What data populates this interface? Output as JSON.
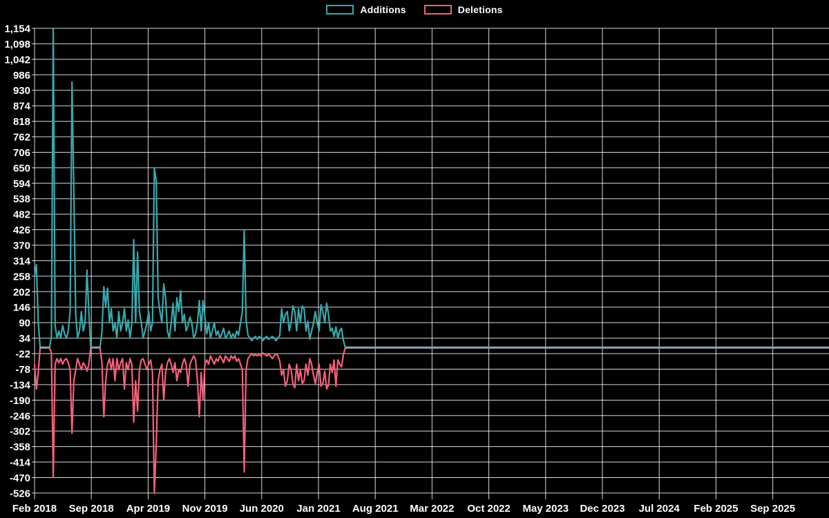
{
  "legend": {
    "items": [
      {
        "label": "Additions",
        "color": "#38a9ad"
      },
      {
        "label": "Deletions",
        "color": "#f5617b"
      }
    ]
  },
  "chart_data": {
    "type": "line",
    "title": "",
    "xlabel": "",
    "ylabel": "",
    "background_color": "#000000",
    "grid": true,
    "grid_color": "#ffffff",
    "legend_position": "top-center",
    "x_interval": "weekly",
    "x_start_label": "Feb 2018",
    "x_tick_labels": [
      "Feb 2018",
      "Sep 2018",
      "Apr 2019",
      "Nov 2019",
      "Jun 2020",
      "Jan 2021",
      "Aug 2021",
      "Mar 2022",
      "Oct 2022",
      "May 2023",
      "Dec 2023",
      "Jul 2024",
      "Feb 2025",
      "Sep 2025"
    ],
    "x_tick_interval_months": 7,
    "y_tick_labels": [
      "1,154",
      "1,098",
      "1,042",
      "986",
      "930",
      "874",
      "818",
      "762",
      "706",
      "650",
      "594",
      "538",
      "482",
      "426",
      "370",
      "314",
      "258",
      "202",
      "146",
      "90",
      "34",
      "-22",
      "-78",
      "-134",
      "-190",
      "-246",
      "-302",
      "-358",
      "-414",
      "-470",
      "-526"
    ],
    "y_tick_values": [
      1154,
      1098,
      1042,
      986,
      930,
      874,
      818,
      762,
      706,
      650,
      594,
      538,
      482,
      426,
      370,
      314,
      258,
      202,
      146,
      90,
      34,
      -22,
      -78,
      -134,
      -190,
      -246,
      -302,
      -358,
      -414,
      -470,
      -526
    ],
    "ylim": [
      -526,
      1154
    ],
    "zero_tail": {
      "enabled": true,
      "color": "#86abb4",
      "note": "after the last data point (~Apr 2021) both series stay at 0 to the right edge"
    },
    "series": [
      {
        "name": "Additions",
        "color": "#38a9ad",
        "values": [
          260,
          300,
          90,
          0,
          0,
          0,
          0,
          0,
          0,
          40,
          1154,
          80,
          34,
          60,
          34,
          80,
          50,
          34,
          60,
          130,
          960,
          560,
          120,
          34,
          60,
          130,
          60,
          90,
          280,
          130,
          0,
          0,
          0,
          0,
          0,
          0,
          60,
          220,
          150,
          215,
          90,
          140,
          60,
          90,
          34,
          130,
          60,
          90,
          140,
          60,
          100,
          34,
          90,
          390,
          90,
          345,
          130,
          90,
          34,
          60,
          90,
          130,
          60,
          90,
          650,
          600,
          180,
          130,
          90,
          230,
          180,
          60,
          34,
          90,
          160,
          60,
          180,
          130,
          205,
          90,
          120,
          60,
          80,
          110,
          90,
          34,
          50,
          90,
          170,
          60,
          170,
          110,
          50,
          90,
          34,
          60,
          90,
          45,
          60,
          34,
          50,
          70,
          34,
          45,
          60,
          34,
          50,
          34,
          60,
          45,
          90,
          130,
          425,
          100,
          45,
          34,
          25,
          34,
          40,
          30,
          40,
          34,
          25,
          34,
          40,
          30,
          34,
          40,
          34,
          25,
          34,
          45,
          140,
          90,
          120,
          130,
          60,
          90,
          150,
          130,
          60,
          140,
          90,
          150,
          140,
          60,
          95,
          30,
          60,
          90,
          130,
          90,
          60,
          155,
          130,
          90,
          160,
          120,
          60,
          70,
          40,
          75,
          34,
          60,
          70,
          25,
          0
        ]
      },
      {
        "name": "Deletions",
        "color": "#f5617b",
        "values": [
          -60,
          -150,
          -90,
          0,
          0,
          0,
          0,
          0,
          0,
          -20,
          -470,
          -60,
          -40,
          -55,
          -40,
          -60,
          -45,
          -40,
          -55,
          -80,
          -310,
          -120,
          -80,
          -40,
          -60,
          -80,
          -55,
          -65,
          -85,
          -60,
          0,
          0,
          0,
          0,
          0,
          0,
          -55,
          -250,
          -120,
          -60,
          -40,
          -80,
          -40,
          -120,
          -40,
          -80,
          -55,
          -40,
          -150,
          -55,
          -80,
          -40,
          -60,
          -270,
          -120,
          -230,
          -80,
          -45,
          -40,
          -60,
          -80,
          -60,
          -45,
          -90,
          -526,
          -350,
          -120,
          -80,
          -60,
          -190,
          -90,
          -55,
          -40,
          -60,
          -90,
          -55,
          -120,
          -80,
          -90,
          -60,
          -40,
          -60,
          -140,
          -60,
          -45,
          -30,
          -45,
          -120,
          -250,
          -90,
          -190,
          -60,
          -45,
          -60,
          -30,
          -45,
          -60,
          -40,
          -50,
          -30,
          -40,
          -55,
          -30,
          -40,
          -50,
          -30,
          -40,
          -30,
          -50,
          -40,
          -60,
          -80,
          -450,
          -80,
          -40,
          -30,
          -22,
          -30,
          -25,
          -30,
          -25,
          -30,
          -20,
          -25,
          -30,
          -25,
          -30,
          -40,
          -30,
          -22,
          -30,
          -50,
          -100,
          -80,
          -140,
          -120,
          -60,
          -80,
          -130,
          -145,
          -60,
          -120,
          -80,
          -130,
          -120,
          -60,
          -100,
          -40,
          -60,
          -100,
          -130,
          -90,
          -60,
          -140,
          -130,
          -85,
          -150,
          -135,
          -60,
          -90,
          -45,
          -140,
          -45,
          -60,
          -70,
          -25,
          0
        ]
      }
    ]
  }
}
